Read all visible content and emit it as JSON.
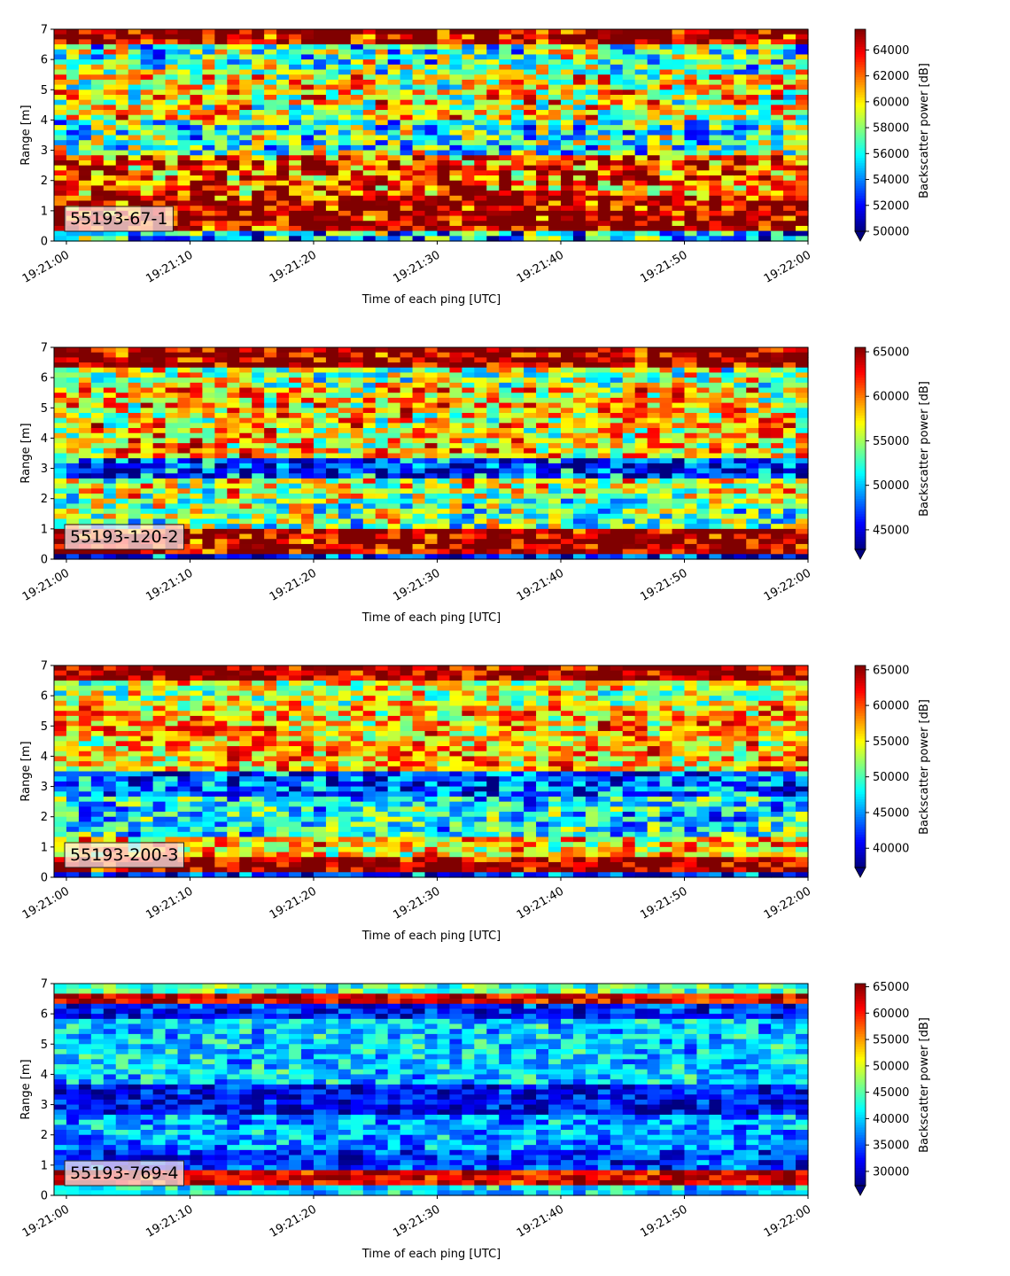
{
  "chart_data": [
    {
      "type": "heatmap",
      "label": "55193-67-1",
      "xlabel": "Time of each ping [UTC]",
      "ylabel": "Range [m]",
      "colorbar_label": "Backscatter power [dB]",
      "colormap": "jet",
      "color_range": [
        50000,
        65600
      ],
      "colorbar_ticks": [
        50000,
        52000,
        54000,
        56000,
        58000,
        60000,
        62000,
        64000
      ],
      "xticks": [
        "19:21:00",
        "19:21:10",
        "19:21:20",
        "19:21:30",
        "19:21:40",
        "19:21:50",
        "19:22:00"
      ],
      "xlim": [
        "19:20:59",
        "19:22:00"
      ],
      "yticks": [
        0,
        1,
        2,
        3,
        4,
        5,
        6,
        7
      ],
      "ylim": [
        0,
        7
      ],
      "range_profile": [
        {
          "from": 0.0,
          "to": 0.25,
          "value": 55000
        },
        {
          "from": 0.25,
          "to": 1.5,
          "value": 65000
        },
        {
          "from": 1.5,
          "to": 2.8,
          "value": 62500
        },
        {
          "from": 2.8,
          "to": 4.0,
          "value": 57000
        },
        {
          "from": 4.0,
          "to": 5.5,
          "value": 59500
        },
        {
          "from": 5.5,
          "to": 6.5,
          "value": 57500
        },
        {
          "from": 6.5,
          "to": 7.0,
          "value": 65500
        }
      ],
      "variability": 4500
    },
    {
      "type": "heatmap",
      "label": "55193-120-2",
      "xlabel": "Time of each ping [UTC]",
      "ylabel": "Range [m]",
      "colorbar_label": "Backscatter power [dB]",
      "colormap": "jet",
      "color_range": [
        42800,
        65500
      ],
      "colorbar_ticks": [
        45000,
        50000,
        55000,
        60000,
        65000
      ],
      "xticks": [
        "19:21:00",
        "19:21:10",
        "19:21:20",
        "19:21:30",
        "19:21:40",
        "19:21:50",
        "19:22:00"
      ],
      "xlim": [
        "19:20:59",
        "19:22:00"
      ],
      "yticks": [
        0,
        1,
        2,
        3,
        4,
        5,
        6,
        7
      ],
      "ylim": [
        0,
        7
      ],
      "range_profile": [
        {
          "from": 0.0,
          "to": 0.15,
          "value": 45000
        },
        {
          "from": 0.15,
          "to": 1.0,
          "value": 65000
        },
        {
          "from": 1.0,
          "to": 2.0,
          "value": 54000
        },
        {
          "from": 2.0,
          "to": 2.6,
          "value": 56000
        },
        {
          "from": 2.6,
          "to": 3.4,
          "value": 46500
        },
        {
          "from": 3.4,
          "to": 5.6,
          "value": 57500
        },
        {
          "from": 5.6,
          "to": 6.3,
          "value": 55000
        },
        {
          "from": 6.3,
          "to": 7.0,
          "value": 65000
        }
      ],
      "variability": 6000
    },
    {
      "type": "heatmap",
      "label": "55193-200-3",
      "xlabel": "Time of each ping [UTC]",
      "ylabel": "Range [m]",
      "colorbar_label": "Backscatter power [dB]",
      "colormap": "jet",
      "color_range": [
        37300,
        65600
      ],
      "colorbar_ticks": [
        40000,
        45000,
        50000,
        55000,
        60000,
        65000
      ],
      "xticks": [
        "19:21:00",
        "19:21:10",
        "19:21:20",
        "19:21:30",
        "19:21:40",
        "19:21:50",
        "19:22:00"
      ],
      "xlim": [
        "19:20:59",
        "19:22:00"
      ],
      "yticks": [
        0,
        1,
        2,
        3,
        4,
        5,
        6,
        7
      ],
      "ylim": [
        0,
        7
      ],
      "range_profile": [
        {
          "from": 0.0,
          "to": 0.1,
          "value": 42000
        },
        {
          "from": 0.1,
          "to": 0.6,
          "value": 65000
        },
        {
          "from": 0.6,
          "to": 1.4,
          "value": 56000
        },
        {
          "from": 1.4,
          "to": 2.6,
          "value": 48000
        },
        {
          "from": 2.6,
          "to": 3.5,
          "value": 43000
        },
        {
          "from": 3.5,
          "to": 5.6,
          "value": 56500
        },
        {
          "from": 5.6,
          "to": 6.5,
          "value": 54000
        },
        {
          "from": 6.5,
          "to": 7.0,
          "value": 65000
        }
      ],
      "variability": 6500
    },
    {
      "type": "heatmap",
      "label": "55193-769-4",
      "xlabel": "Time of each ping [UTC]",
      "ylabel": "Range [m]",
      "colorbar_label": "Backscatter power [dB]",
      "colormap": "jet",
      "color_range": [
        27300,
        65600
      ],
      "colorbar_ticks": [
        30000,
        35000,
        40000,
        45000,
        50000,
        55000,
        60000,
        65000
      ],
      "xticks": [
        "19:21:00",
        "19:21:10",
        "19:21:20",
        "19:21:30",
        "19:21:40",
        "19:21:50",
        "19:22:00"
      ],
      "xlim": [
        "19:20:59",
        "19:22:00"
      ],
      "yticks": [
        0,
        1,
        2,
        3,
        4,
        5,
        6,
        7
      ],
      "ylim": [
        0,
        7
      ],
      "range_profile": [
        {
          "from": 0.0,
          "to": 0.3,
          "value": 40000
        },
        {
          "from": 0.3,
          "to": 0.8,
          "value": 62000
        },
        {
          "from": 0.8,
          "to": 1.5,
          "value": 34000
        },
        {
          "from": 1.5,
          "to": 2.6,
          "value": 38000
        },
        {
          "from": 2.6,
          "to": 3.6,
          "value": 32000
        },
        {
          "from": 3.6,
          "to": 5.8,
          "value": 40000
        },
        {
          "from": 5.8,
          "to": 6.3,
          "value": 33000
        },
        {
          "from": 6.3,
          "to": 6.7,
          "value": 62000
        },
        {
          "from": 6.7,
          "to": 7.0,
          "value": 44000
        }
      ],
      "variability": 5500
    }
  ]
}
